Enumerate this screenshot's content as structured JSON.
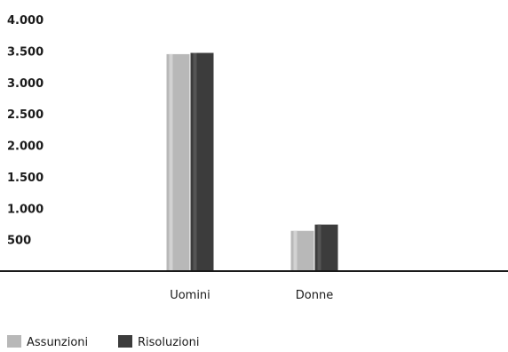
{
  "chart_data": {
    "type": "bar",
    "categories": [
      "Uomini",
      "Donne"
    ],
    "series": [
      {
        "name": "Assunzioni",
        "values": [
          3450,
          640
        ],
        "color": "#b8b8b8"
      },
      {
        "name": "Risoluzioni",
        "values": [
          3470,
          740
        ],
        "color": "#3c3c3c"
      }
    ],
    "yticks": [
      "500",
      "1.000",
      "1.500",
      "2.000",
      "2.500",
      "3.000",
      "3.500",
      "4.000"
    ],
    "ytick_values": [
      500,
      1000,
      1500,
      2000,
      2500,
      3000,
      3500,
      4000
    ],
    "ylim": [
      0,
      4000
    ],
    "grid": false,
    "legend_position": "bottom-left",
    "title": "",
    "xlabel": "",
    "ylabel": ""
  }
}
